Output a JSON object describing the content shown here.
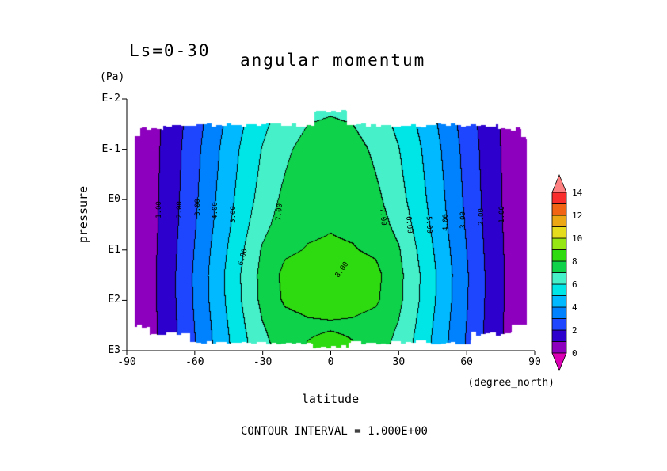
{
  "header": {
    "season_label": "Ls=0-30",
    "title": "angular momentum"
  },
  "y_axis": {
    "unit": "(Pa)",
    "label": "pressure",
    "ticks": [
      "E-2",
      "E-1",
      "E0",
      "E1",
      "E2",
      "E3"
    ]
  },
  "x_axis": {
    "label": "latitude",
    "unit": "(degree_north)",
    "ticks": [
      "-90",
      "-60",
      "-30",
      "0",
      "30",
      "60",
      "90"
    ]
  },
  "footer": {
    "contour_interval_label": "CONTOUR INTERVAL = 1.000E+00"
  },
  "colorbar": {
    "tick_labels": [
      "0",
      "2",
      "4",
      "6",
      "8",
      "10",
      "12",
      "14"
    ],
    "under_color": "#dc00b4",
    "over_color": "#ff8080"
  },
  "chart_data": {
    "type": "contour",
    "title": "angular momentum",
    "season": "Ls=0-30",
    "xlabel": "latitude",
    "xunit": "degree_north",
    "ylabel": "pressure",
    "yunit": "Pa",
    "y_scale": "log10 pressure, E-2 at top to E3 at bottom",
    "lat_range": [
      -90,
      90
    ],
    "log10_pressure_range": [
      -2,
      3
    ],
    "contour_interval": 1.0,
    "x_lat_deg": [
      -90,
      -80,
      -70,
      -60,
      -50,
      -40,
      -30,
      -20,
      -10,
      0,
      10,
      20,
      30,
      40,
      50,
      60,
      70,
      80,
      90
    ],
    "y_log10_pressure": [
      -1.75,
      -1.5,
      -1.0,
      -0.5,
      0,
      0.5,
      1.0,
      1.5,
      2.0,
      2.5,
      2.9
    ],
    "values": [
      [
        0,
        0.5,
        1.38,
        2.44,
        3.56,
        4.62,
        5.56,
        6.29,
        6.74,
        6.9,
        6.74,
        6.29,
        5.56,
        4.62,
        3.56,
        2.44,
        1.38,
        0.5,
        0
      ],
      [
        0,
        0.52,
        1.43,
        2.53,
        3.69,
        4.79,
        5.76,
        6.51,
        6.99,
        7.15,
        6.99,
        6.51,
        5.76,
        4.79,
        3.69,
        2.53,
        1.43,
        0.52,
        0
      ],
      [
        0,
        0.54,
        1.5,
        2.66,
        3.87,
        5.03,
        6.05,
        6.83,
        7.33,
        7.5,
        7.33,
        6.83,
        6.05,
        5.03,
        3.87,
        2.66,
        1.5,
        0.54,
        0
      ],
      [
        0,
        0.56,
        1.54,
        2.73,
        3.97,
        5.16,
        6.21,
        7.01,
        7.52,
        7.7,
        7.52,
        7.01,
        6.21,
        5.16,
        3.97,
        2.73,
        1.54,
        0.56,
        0
      ],
      [
        0,
        0.57,
        1.58,
        2.8,
        4.08,
        5.3,
        6.4,
        7.25,
        7.7,
        7.85,
        7.7,
        7.25,
        6.4,
        5.3,
        4.08,
        2.8,
        1.58,
        0.57,
        0
      ],
      [
        0,
        0.59,
        1.63,
        2.9,
        4.2,
        5.5,
        6.7,
        7.5,
        7.85,
        7.95,
        7.85,
        7.5,
        6.7,
        5.5,
        4.2,
        2.9,
        1.63,
        0.59,
        0
      ],
      [
        0,
        0.62,
        1.7,
        3.02,
        4.4,
        5.75,
        7.1,
        7.85,
        8.05,
        8.1,
        8.05,
        7.85,
        7.1,
        5.75,
        4.4,
        3.02,
        1.7,
        0.62,
        0
      ],
      [
        0,
        0.64,
        1.76,
        3.12,
        4.55,
        5.95,
        7.3,
        8.25,
        8.4,
        8.45,
        8.4,
        8.25,
        7.3,
        5.95,
        4.55,
        3.12,
        1.76,
        0.64,
        0
      ],
      [
        0,
        0.63,
        1.75,
        3.1,
        4.5,
        5.9,
        7.25,
        8.15,
        8.35,
        8.4,
        8.35,
        8.15,
        7.25,
        5.9,
        4.5,
        3.1,
        1.75,
        0.63,
        0
      ],
      [
        0,
        0.6,
        1.7,
        3.0,
        4.35,
        5.7,
        6.95,
        7.6,
        7.85,
        7.9,
        7.85,
        7.6,
        6.95,
        5.7,
        4.35,
        3.0,
        1.7,
        0.6,
        0
      ],
      [
        0,
        0.6,
        1.65,
        2.92,
        4.25,
        5.55,
        6.7,
        7.5,
        8.05,
        8.25,
        8.05,
        7.5,
        6.7,
        5.55,
        4.25,
        2.92,
        1.65,
        0.6,
        0
      ]
    ],
    "fill_colors": [
      "#8c00be",
      "#2d00cd",
      "#1e46ff",
      "#0082ff",
      "#00b9ff",
      "#00e6e6",
      "#46f0c8",
      "#0fd24b",
      "#2eda10",
      "#96e614",
      "#e6dc1e",
      "#eba814",
      "#f06414",
      "#fa2d2d"
    ],
    "contour_line_color": "#000000",
    "contour_labels": [
      {
        "text": "1.00",
        "lat": -75.5,
        "z": 0.2,
        "rot": -90
      },
      {
        "text": "2.00",
        "lat": -66.5,
        "z": 0.2,
        "rot": -90
      },
      {
        "text": "3.00",
        "lat": -58.5,
        "z": 0.15,
        "rot": -90
      },
      {
        "text": "4.00",
        "lat": -50.8,
        "z": 0.22,
        "rot": -90
      },
      {
        "text": "5.00",
        "lat": -42.8,
        "z": 0.3,
        "rot": -90
      },
      {
        "text": "6.00",
        "lat": -38.5,
        "z": 1.15,
        "rot": -75
      },
      {
        "text": "7.00",
        "lat": -22.5,
        "z": 0.25,
        "rot": -85
      },
      {
        "text": "7.00",
        "lat": 23.0,
        "z": 0.35,
        "rot": 85
      },
      {
        "text": "6.00",
        "lat": 34.5,
        "z": 0.5,
        "rot": 85
      },
      {
        "text": "5.00",
        "lat": 43.3,
        "z": 0.5,
        "rot": 88
      },
      {
        "text": "4.00",
        "lat": 51.0,
        "z": 0.45,
        "rot": -90
      },
      {
        "text": "3.00",
        "lat": 58.5,
        "z": 0.4,
        "rot": -90
      },
      {
        "text": "2.00",
        "lat": 66.5,
        "z": 0.35,
        "rot": -90
      },
      {
        "text": "1.00",
        "lat": 75.6,
        "z": 0.3,
        "rot": -90
      },
      {
        "text": "8.00",
        "lat": 5.0,
        "z": 1.4,
        "rot": -55
      }
    ]
  }
}
